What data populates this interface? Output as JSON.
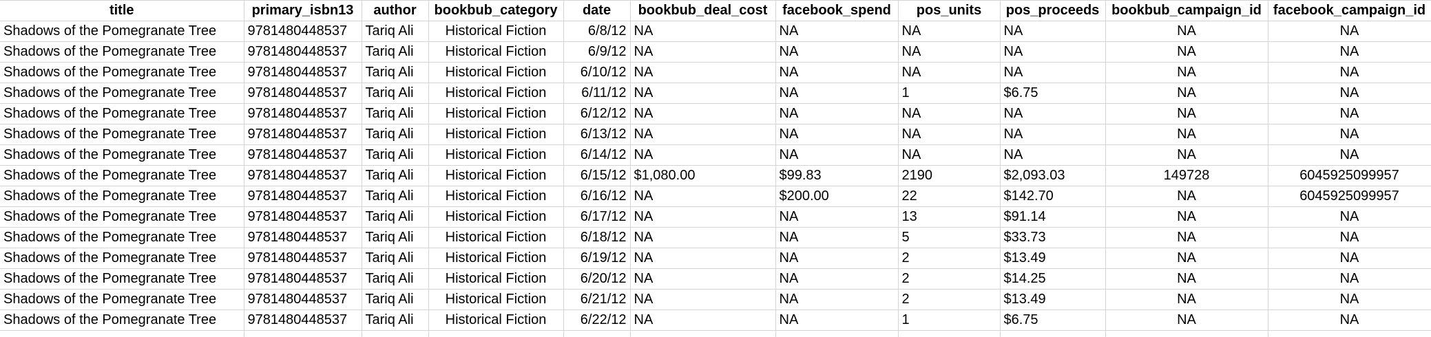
{
  "columns": [
    "title",
    "primary_isbn13",
    "author",
    "bookbub_category",
    "date",
    "bookbub_deal_cost",
    "facebook_spend",
    "pos_units",
    "pos_proceeds",
    "bookbub_campaign_id",
    "facebook_campaign_id"
  ],
  "rows": [
    [
      "Shadows of the Pomegranate Tree",
      "9781480448537",
      "Tariq Ali",
      "Historical Fiction",
      "6/8/12",
      "NA",
      "NA",
      "NA",
      "NA",
      "NA",
      "NA"
    ],
    [
      "Shadows of the Pomegranate Tree",
      "9781480448537",
      "Tariq Ali",
      "Historical Fiction",
      "6/9/12",
      "NA",
      "NA",
      "NA",
      "NA",
      "NA",
      "NA"
    ],
    [
      "Shadows of the Pomegranate Tree",
      "9781480448537",
      "Tariq Ali",
      "Historical Fiction",
      "6/10/12",
      "NA",
      "NA",
      "NA",
      "NA",
      "NA",
      "NA"
    ],
    [
      "Shadows of the Pomegranate Tree",
      "9781480448537",
      "Tariq Ali",
      "Historical Fiction",
      "6/11/12",
      "NA",
      "NA",
      "1",
      "$6.75",
      "NA",
      "NA"
    ],
    [
      "Shadows of the Pomegranate Tree",
      "9781480448537",
      "Tariq Ali",
      "Historical Fiction",
      "6/12/12",
      "NA",
      "NA",
      "NA",
      "NA",
      "NA",
      "NA"
    ],
    [
      "Shadows of the Pomegranate Tree",
      "9781480448537",
      "Tariq Ali",
      "Historical Fiction",
      "6/13/12",
      "NA",
      "NA",
      "NA",
      "NA",
      "NA",
      "NA"
    ],
    [
      "Shadows of the Pomegranate Tree",
      "9781480448537",
      "Tariq Ali",
      "Historical Fiction",
      "6/14/12",
      "NA",
      "NA",
      "NA",
      "NA",
      "NA",
      "NA"
    ],
    [
      "Shadows of the Pomegranate Tree",
      "9781480448537",
      "Tariq Ali",
      "Historical Fiction",
      "6/15/12",
      "$1,080.00",
      "$99.83",
      "2190",
      "$2,093.03",
      "149728",
      "6045925099957"
    ],
    [
      "Shadows of the Pomegranate Tree",
      "9781480448537",
      "Tariq Ali",
      "Historical Fiction",
      "6/16/12",
      "NA",
      "$200.00",
      "22",
      "$142.70",
      "NA",
      "6045925099957"
    ],
    [
      "Shadows of the Pomegranate Tree",
      "9781480448537",
      "Tariq Ali",
      "Historical Fiction",
      "6/17/12",
      "NA",
      "NA",
      "13",
      "$91.14",
      "NA",
      "NA"
    ],
    [
      "Shadows of the Pomegranate Tree",
      "9781480448537",
      "Tariq Ali",
      "Historical Fiction",
      "6/18/12",
      "NA",
      "NA",
      "5",
      "$33.73",
      "NA",
      "NA"
    ],
    [
      "Shadows of the Pomegranate Tree",
      "9781480448537",
      "Tariq Ali",
      "Historical Fiction",
      "6/19/12",
      "NA",
      "NA",
      "2",
      "$13.49",
      "NA",
      "NA"
    ],
    [
      "Shadows of the Pomegranate Tree",
      "9781480448537",
      "Tariq Ali",
      "Historical Fiction",
      "6/20/12",
      "NA",
      "NA",
      "2",
      "$14.25",
      "NA",
      "NA"
    ],
    [
      "Shadows of the Pomegranate Tree",
      "9781480448537",
      "Tariq Ali",
      "Historical Fiction",
      "6/21/12",
      "NA",
      "NA",
      "2",
      "$13.49",
      "NA",
      "NA"
    ],
    [
      "Shadows of the Pomegranate Tree",
      "9781480448537",
      "Tariq Ali",
      "Historical Fiction",
      "6/22/12",
      "NA",
      "NA",
      "1",
      "$6.75",
      "NA",
      "NA"
    ]
  ]
}
